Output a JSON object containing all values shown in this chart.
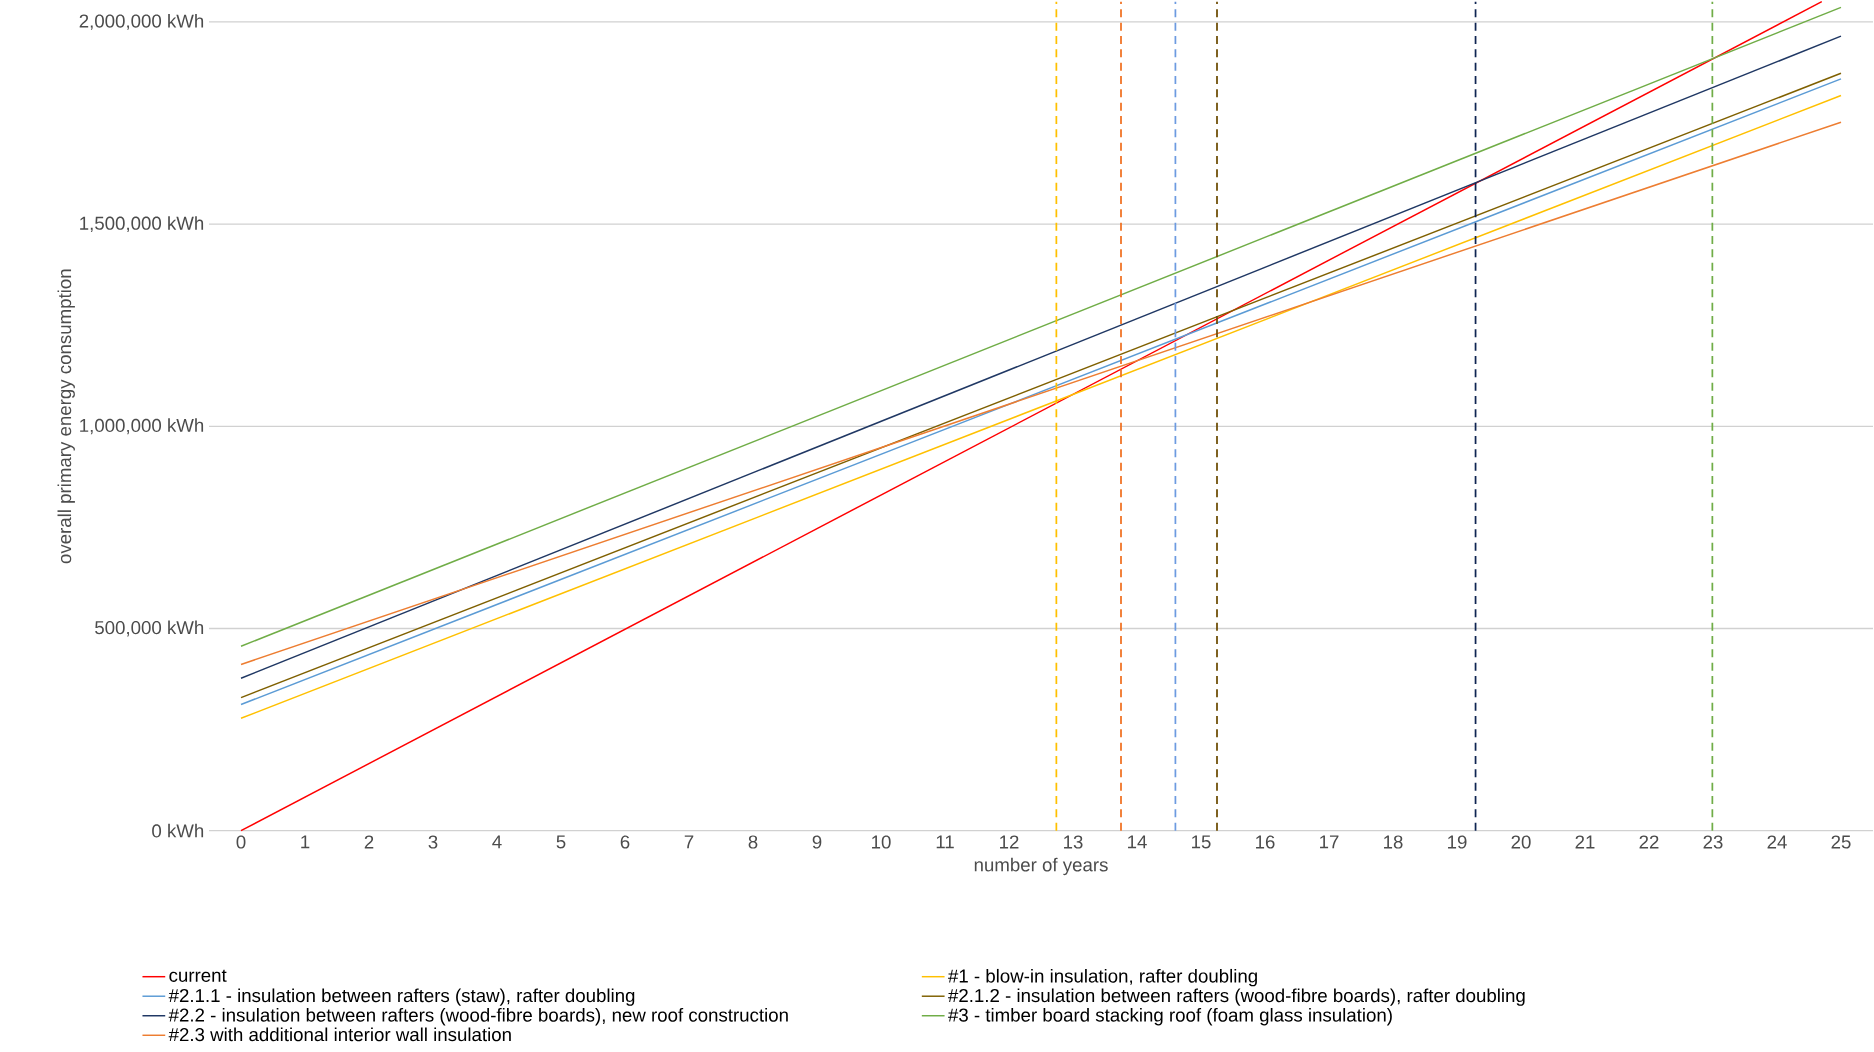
{
  "chart_data": {
    "type": "line",
    "xlabel": "number of years",
    "ylabel": "overall primary energy consumption",
    "xlim": [
      -0.5,
      25.5
    ],
    "xticks": [
      0,
      1,
      2,
      3,
      4,
      5,
      6,
      7,
      8,
      9,
      10,
      11,
      12,
      13,
      14,
      15,
      16,
      17,
      18,
      19,
      20,
      21,
      22,
      23,
      24,
      25
    ],
    "ylim": [
      0,
      2050000
    ],
    "yticks": [
      {
        "value": 0,
        "label": "0 kWh"
      },
      {
        "value": 500000,
        "label": "500,000 kWh"
      },
      {
        "value": 1000000,
        "label": "1,000,000 kWh"
      },
      {
        "value": 1500000,
        "label": "1,500,000 kWh"
      },
      {
        "value": 2000000,
        "label": "2,000,000 kWh"
      }
    ],
    "grid": "y",
    "legend": "bottom",
    "marker": "none",
    "line_style": "solid",
    "series": [
      {
        "name": "current",
        "color": "#ff0000",
        "x": [
          0,
          24.7
        ],
        "values": [
          0,
          2050000
        ]
      },
      {
        "name": "#1 - blow-in insulation, rafter doubling",
        "color": "#ffc000",
        "x": [
          0,
          25
        ],
        "values": [
          278000,
          1818000
        ]
      },
      {
        "name": "#2.1.1 - insulation between rafters (staw), rafter doubling",
        "color": "#5b9bd5",
        "x": [
          0,
          25
        ],
        "values": [
          312000,
          1859000
        ]
      },
      {
        "name": "#2.1.2 - insulation between rafters (wood-fibre boards), rafter doubling",
        "color": "#7f6000",
        "x": [
          0,
          25
        ],
        "values": [
          329000,
          1873000
        ]
      },
      {
        "name": "#2.2 - insulation between rafters (wood-fibre boards), new roof construction",
        "color": "#203864",
        "x": [
          0,
          25
        ],
        "values": [
          377000,
          1965000
        ]
      },
      {
        "name": "#3 - timber board stacking roof (foam glass insulation)",
        "color": "#70ad47",
        "x": [
          0,
          25
        ],
        "values": [
          456000,
          2036000
        ]
      },
      {
        "name": "#2.3 with additional interior wall insulation",
        "color": "#ed7d31",
        "x": [
          0,
          25
        ],
        "values": [
          411000,
          1752000
        ]
      }
    ],
    "ref_lines": [
      {
        "axis": "x",
        "value": 12.74,
        "color": "#ffc000",
        "line_style": "dashed"
      },
      {
        "axis": "x",
        "value": 13.75,
        "color": "#f07020",
        "line_style": "dashed"
      },
      {
        "axis": "x",
        "value": 14.6,
        "color": "#6d9be0",
        "line_style": "dashed"
      },
      {
        "axis": "x",
        "value": 15.25,
        "color": "#6b4a00",
        "line_style": "dashed"
      },
      {
        "axis": "x",
        "value": 19.29,
        "color": "#0f2552",
        "line_style": "dashed"
      },
      {
        "axis": "x",
        "value": 22.99,
        "color": "#70ad47",
        "line_style": "dashed"
      }
    ]
  }
}
